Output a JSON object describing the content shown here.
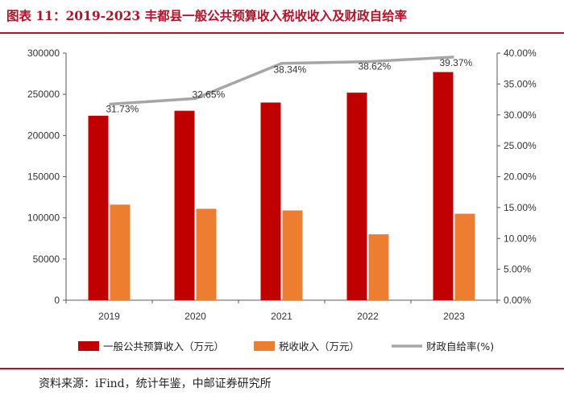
{
  "figure": {
    "title": "图表 11：2019-2023 丰都县一般公共预算收入税收收入及财政自给率",
    "source": "资料来源：iFind，统计年鉴，中邮证券研究所"
  },
  "chart_data": {
    "type": "bar",
    "categories": [
      "2019",
      "2020",
      "2021",
      "2022",
      "2023"
    ],
    "series": [
      {
        "name": "一般公共预算收入（万元）",
        "type": "bar",
        "axis": "left",
        "color": "#c00000",
        "values": [
          224000,
          230000,
          240000,
          252000,
          277000
        ]
      },
      {
        "name": "税收收入（万元）",
        "type": "bar",
        "axis": "left",
        "color": "#ed7d31",
        "values": [
          116000,
          111000,
          109000,
          80000,
          105000
        ]
      },
      {
        "name": "财政自给率(%)",
        "type": "line",
        "axis": "right",
        "color": "#a6a6a6",
        "values": [
          31.73,
          32.65,
          38.34,
          38.62,
          39.37
        ],
        "labels": [
          "31.73%",
          "32.65%",
          "38.34%",
          "38.62%",
          "39.37%"
        ]
      }
    ],
    "left_axis": {
      "min": 0,
      "max": 300000,
      "step": 50000,
      "ticks": [
        "0",
        "50000",
        "100000",
        "150000",
        "200000",
        "250000",
        "300000"
      ]
    },
    "right_axis": {
      "min": 0,
      "max": 40,
      "step": 5,
      "ticks": [
        "0.00%",
        "5.00%",
        "10.00%",
        "15.00%",
        "20.00%",
        "25.00%",
        "30.00%",
        "35.00%",
        "40.00%"
      ]
    },
    "legend_position": "bottom"
  }
}
